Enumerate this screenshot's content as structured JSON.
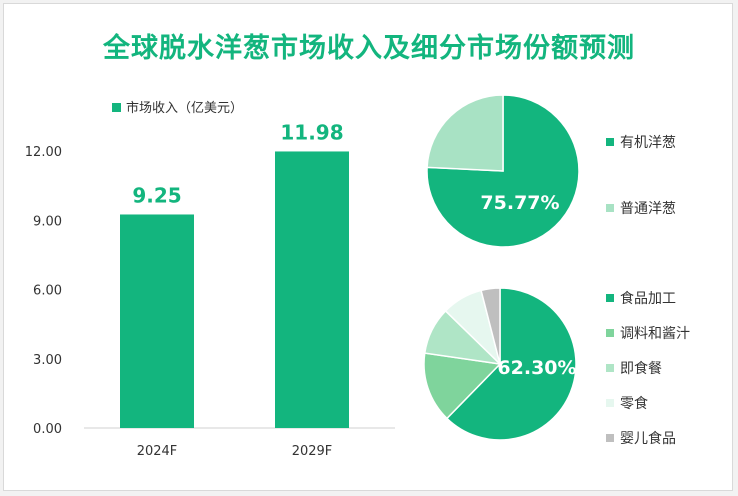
{
  "title": "全球脱水洋葱市场收入及细分市场份额预测",
  "colors": {
    "accent": "#13b57e",
    "bar": "#13b57e",
    "pie1": [
      "#13b57e",
      "#a8e2c4"
    ],
    "pie2": [
      "#13b57e",
      "#7fd49c",
      "#afe5c6",
      "#e6f7ef",
      "#bfbfbf"
    ]
  },
  "chart_data": [
    {
      "type": "bar",
      "legend": "市场收入（亿美元）",
      "categories": [
        "2024F",
        "2029F"
      ],
      "values": [
        9.25,
        11.98
      ],
      "value_labels": [
        "9.25",
        "11.98"
      ],
      "yticks": [
        "0.00",
        "3.00",
        "6.00",
        "9.00",
        "12.00"
      ],
      "ylim": [
        0,
        12
      ]
    },
    {
      "type": "pie",
      "labels": [
        "有机洋葱",
        "普通洋葱"
      ],
      "values": [
        75.77,
        24.23
      ],
      "data_label": "75.77%"
    },
    {
      "type": "pie",
      "labels": [
        "食品加工",
        "调料和酱汁",
        "即食餐",
        "零食",
        "婴儿食品"
      ],
      "values": [
        62.3,
        15,
        10,
        8.7,
        4
      ],
      "data_label": "62.30%"
    }
  ]
}
